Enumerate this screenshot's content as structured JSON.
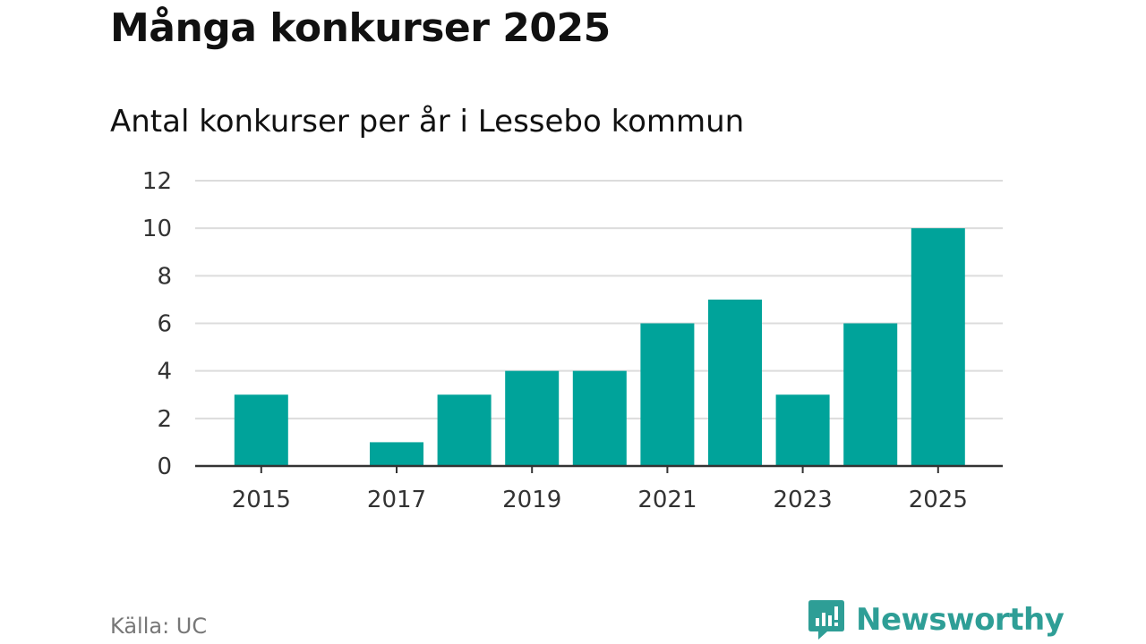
{
  "page": {
    "title": "Många konkurser 2025",
    "subtitle": "Antal konkurser per år i Lessebo kommun"
  },
  "chart_data": {
    "type": "bar",
    "title": "Många konkurser 2025",
    "subtitle": "Antal konkurser per år i Lessebo kommun",
    "categories": [
      "2015",
      "2016",
      "2017",
      "2018",
      "2019",
      "2020",
      "2021",
      "2022",
      "2023",
      "2024",
      "2025"
    ],
    "values": [
      3,
      0,
      1,
      3,
      4,
      4,
      6,
      7,
      3,
      6,
      10
    ],
    "x_tick_labels": [
      "2015",
      "2017",
      "2019",
      "2021",
      "2023",
      "2025"
    ],
    "y_ticks": [
      0,
      2,
      4,
      6,
      8,
      10,
      12
    ],
    "ylim": [
      0,
      12
    ],
    "xlabel": "",
    "ylabel": "",
    "grid": true,
    "bar_color": "#00a39a"
  },
  "footer": {
    "source": "Källa: UC",
    "brand": "Newsworthy",
    "brand_color": "#2e9e96"
  }
}
